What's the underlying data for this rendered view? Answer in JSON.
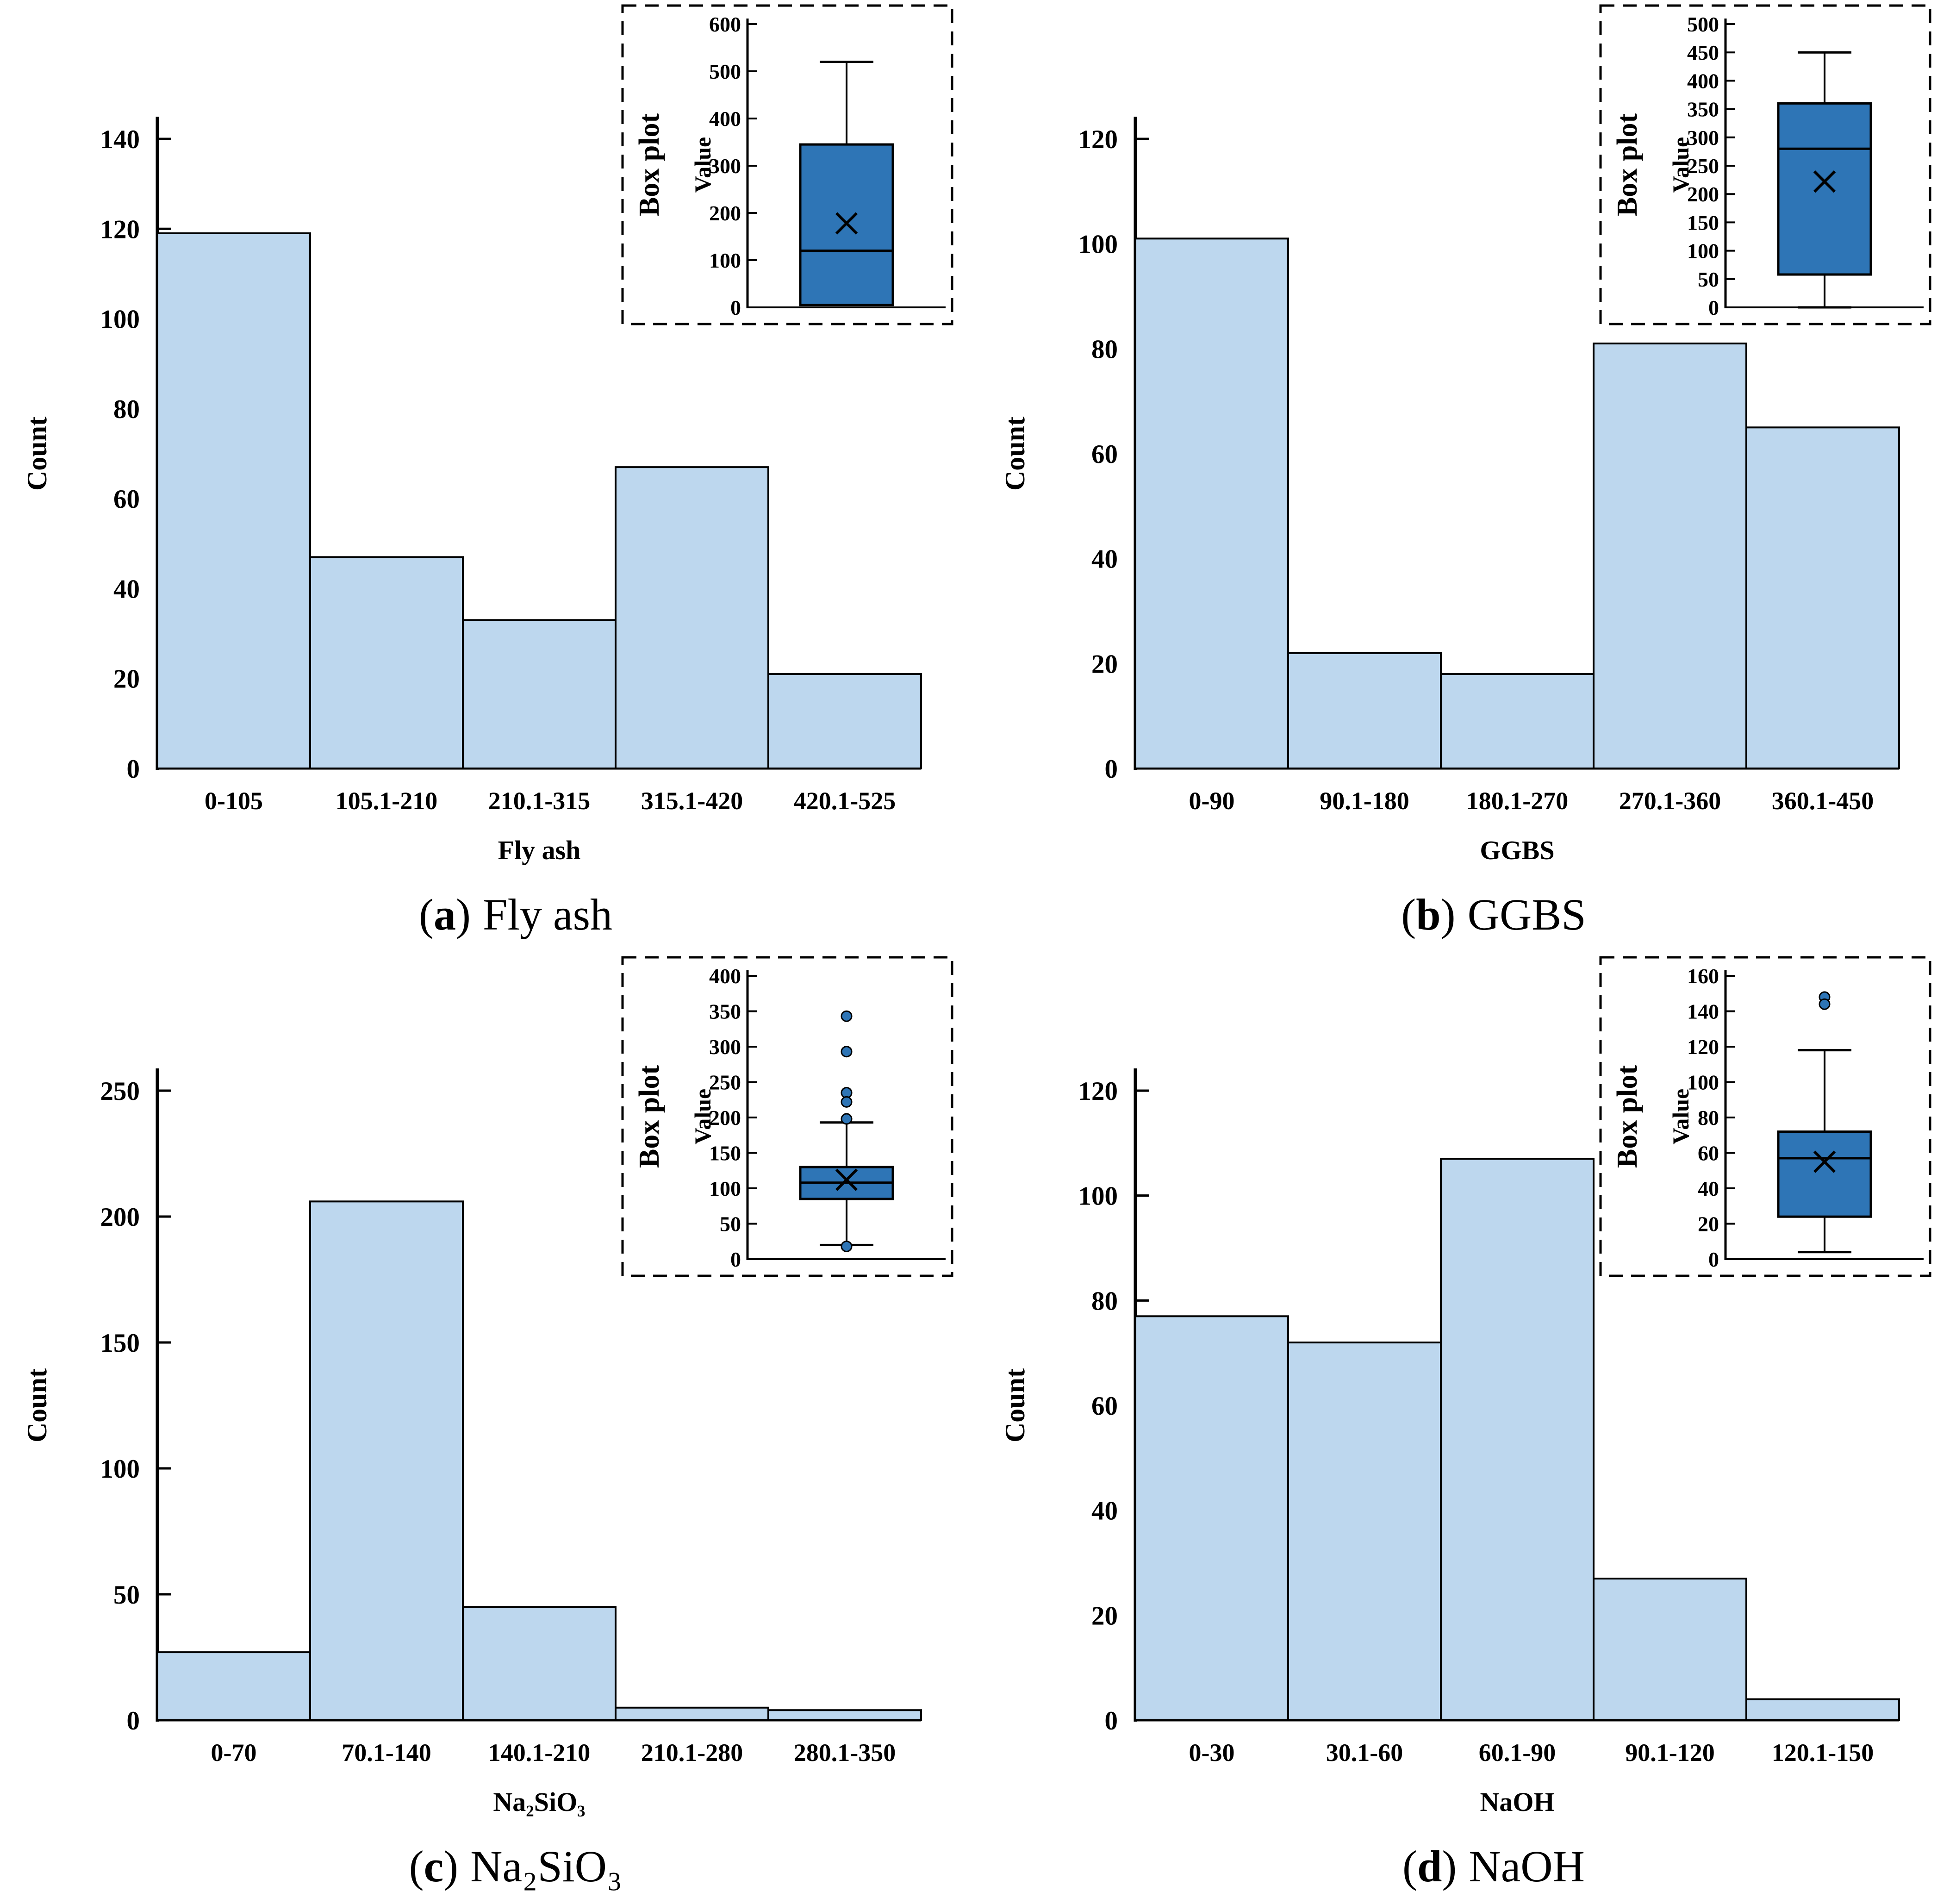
{
  "colors": {
    "bar_fill": "#BDD7EE",
    "bar_stroke": "#000000",
    "box_fill": "#2E75B6",
    "box_stroke": "#000000",
    "axis_color": "#000000",
    "inset_border": "#000000",
    "background": "#ffffff"
  },
  "chart_data": [
    {
      "id": "a",
      "type": "bar",
      "caption": {
        "open": "(",
        "letter": "a",
        "close": ")",
        "label": "Fly ash"
      },
      "xlabel": "Fly ash",
      "ylabel": "Count",
      "categories": [
        "0-105",
        "105.1-210",
        "210.1-315",
        "315.1-420",
        "420.1-525"
      ],
      "values": [
        119,
        47,
        33,
        67,
        21
      ],
      "ylim": [
        0,
        140
      ],
      "ytick_step": 20,
      "grid": false,
      "inset_boxplot": {
        "title": "Box plot",
        "ylabel": "Value",
        "ylim": [
          0,
          600
        ],
        "ytick_step": 100,
        "q1": 5,
        "median": 120,
        "q3": 345,
        "mean": 178,
        "whisker_low": 5,
        "whisker_high": 520,
        "outliers": []
      }
    },
    {
      "id": "b",
      "type": "bar",
      "caption": {
        "open": "(",
        "letter": "b",
        "close": ")",
        "label": "GGBS"
      },
      "xlabel": "GGBS",
      "ylabel": "Count",
      "categories": [
        "0-90",
        "90.1-180",
        "180.1-270",
        "270.1-360",
        "360.1-450"
      ],
      "values": [
        101,
        22,
        18,
        81,
        65
      ],
      "ylim": [
        0,
        120
      ],
      "ytick_step": 20,
      "grid": false,
      "inset_boxplot": {
        "title": "Box plot",
        "ylabel": "Value",
        "ylim": [
          0,
          500
        ],
        "ytick_step": 50,
        "q1": 58,
        "median": 280,
        "q3": 360,
        "mean": 222,
        "whisker_low": 0,
        "whisker_high": 450,
        "outliers": []
      }
    },
    {
      "id": "c",
      "type": "bar",
      "caption": {
        "open": "(",
        "letter": "c",
        "close": ")",
        "label": "Na₂SiO₃"
      },
      "xlabel": "Na₂SiO₃",
      "ylabel": "Count",
      "categories": [
        "0-70",
        "70.1-140",
        "140.1-210",
        "210.1-280",
        "280.1-350"
      ],
      "values": [
        27,
        206,
        45,
        5,
        4
      ],
      "ylim": [
        0,
        250
      ],
      "ytick_step": 50,
      "grid": false,
      "inset_boxplot": {
        "title": "Box plot",
        "ylabel": "Value",
        "ylim": [
          0,
          400
        ],
        "ytick_step": 50,
        "q1": 85,
        "median": 108,
        "q3": 130,
        "mean": 112,
        "whisker_low": 20,
        "whisker_high": 193,
        "outliers": [
          343,
          293,
          235,
          222,
          198,
          18
        ]
      }
    },
    {
      "id": "d",
      "type": "bar",
      "caption": {
        "open": "(",
        "letter": "d",
        "close": ")",
        "label": "NaOH"
      },
      "xlabel": "NaOH",
      "ylabel": "Count",
      "categories": [
        "0-30",
        "30.1-60",
        "60.1-90",
        "90.1-120",
        "120.1-150"
      ],
      "values": [
        77,
        72,
        107,
        27,
        4
      ],
      "ylim": [
        0,
        120
      ],
      "ytick_step": 20,
      "grid": false,
      "inset_boxplot": {
        "title": "Box plot",
        "ylabel": "Value",
        "ylim": [
          0,
          160
        ],
        "ytick_step": 20,
        "q1": 24,
        "median": 57,
        "q3": 72,
        "mean": 55,
        "whisker_low": 4,
        "whisker_high": 118,
        "outliers": [
          148,
          144
        ]
      }
    }
  ]
}
